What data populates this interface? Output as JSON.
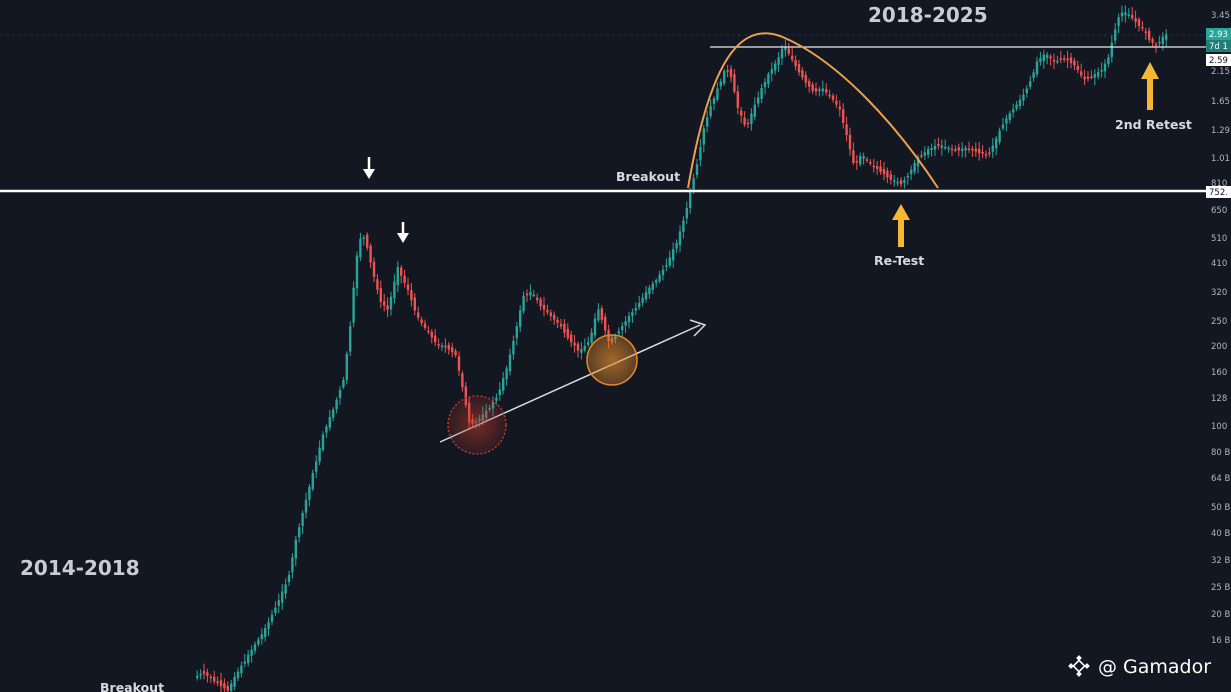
{
  "chart_data": {
    "type": "candlestick",
    "title": "",
    "scale": "log",
    "periods": [
      "2014-2018",
      "2018-2025"
    ],
    "y_tick_labels": [
      "3.45",
      "2.15",
      "1.65",
      "1.29",
      "1.01",
      "810",
      "650",
      "510",
      "410",
      "320",
      "250",
      "200",
      "160",
      "128",
      "100",
      "80 B",
      "64 B",
      "50 B",
      "40 B",
      "32 B",
      "25 B",
      "20 B",
      "16 B"
    ],
    "price_tags": [
      {
        "text": "2.93",
        "color": "#26a69a"
      },
      {
        "text": "7d 1",
        "color": "#26a69a"
      },
      {
        "text": "2.59",
        "color": "#ffffff"
      },
      {
        "text": "752.",
        "color": "#ffffff"
      }
    ],
    "resistance_level": "752.",
    "annotations": [
      "Breakout",
      "Re-Test",
      "2nd Retest",
      "Breakout"
    ]
  },
  "watermark": {
    "text": "@ Gamador",
    "icon": "binance-icon"
  },
  "colors": {
    "up": "#26a69a",
    "down": "#ef5350",
    "background": "#131722",
    "arc": "#f0a04a",
    "arrow_yellow": "#f5b731"
  }
}
